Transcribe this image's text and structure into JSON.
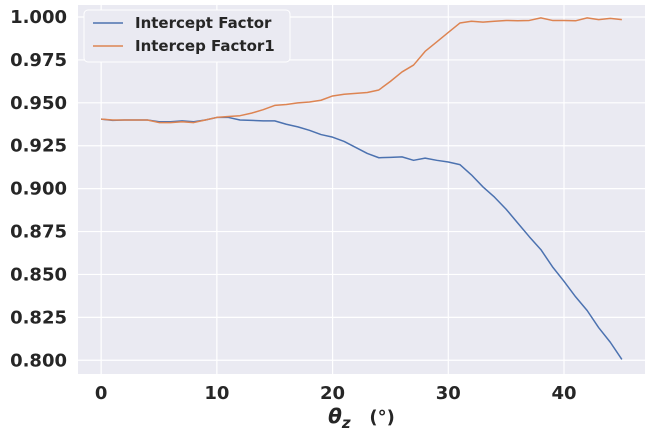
{
  "chart_data": {
    "type": "line",
    "title": "",
    "xlabel": "",
    "ylabel": "",
    "xlim": [
      -2,
      47
    ],
    "ylim": [
      0.792,
      1.007
    ],
    "x_ticks": [
      0,
      10,
      20,
      30,
      40
    ],
    "x_tick_labels": [
      "0",
      "10",
      "20",
      "30",
      "40"
    ],
    "y_ticks": [
      0.8,
      0.825,
      0.85,
      0.875,
      0.9,
      0.925,
      0.95,
      0.975,
      1.0
    ],
    "y_tick_labels": [
      "0.800",
      "0.825",
      "0.850",
      "0.875",
      "0.900",
      "0.925",
      "0.950",
      "0.975",
      "1.000"
    ],
    "grid": true,
    "legend_position": "top-left",
    "x": [
      0,
      1,
      2,
      3,
      4,
      5,
      6,
      7,
      8,
      9,
      10,
      11,
      12,
      13,
      14,
      15,
      16,
      17,
      18,
      19,
      20,
      21,
      22,
      23,
      24,
      25,
      26,
      27,
      28,
      29,
      30,
      31,
      32,
      33,
      34,
      35,
      36,
      37,
      38,
      39,
      40,
      41,
      42,
      43,
      44,
      45
    ],
    "series": [
      {
        "name": "Intercept Factor",
        "color": "#4c72b0",
        "values": [
          0.9405,
          0.9398,
          0.94,
          0.94,
          0.94,
          0.939,
          0.939,
          0.9395,
          0.939,
          0.94,
          0.9415,
          0.9415,
          0.94,
          0.9398,
          0.9395,
          0.9395,
          0.9375,
          0.936,
          0.934,
          0.9315,
          0.93,
          0.9275,
          0.924,
          0.9205,
          0.918,
          0.9182,
          0.9185,
          0.9165,
          0.9178,
          0.9165,
          0.9155,
          0.914,
          0.908,
          0.901,
          0.895,
          0.888,
          0.88,
          0.872,
          0.8645,
          0.8545,
          0.846,
          0.837,
          0.829,
          0.819,
          0.8105,
          0.8005
        ]
      },
      {
        "name": "Intercep Factor1",
        "color": "#dd8452",
        "values": [
          0.9405,
          0.94,
          0.94,
          0.94,
          0.94,
          0.9385,
          0.9385,
          0.939,
          0.9385,
          0.94,
          0.9415,
          0.942,
          0.9425,
          0.944,
          0.946,
          0.9485,
          0.949,
          0.95,
          0.9505,
          0.9515,
          0.954,
          0.955,
          0.9555,
          0.956,
          0.9575,
          0.9625,
          0.968,
          0.972,
          0.98,
          0.9855,
          0.991,
          0.9965,
          0.9975,
          0.997,
          0.9975,
          0.998,
          0.9978,
          0.998,
          0.9995,
          0.998,
          0.998,
          0.9978,
          0.9995,
          0.9985,
          0.9992,
          0.9985
        ]
      }
    ]
  }
}
